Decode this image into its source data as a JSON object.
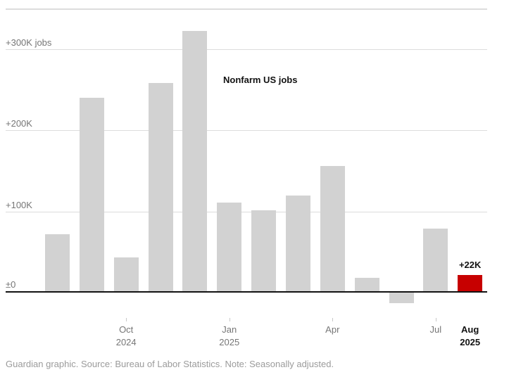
{
  "chart_data": {
    "type": "bar",
    "title": "Nonfarm US jobs",
    "unit": "thousands of jobs (K)",
    "categories": [
      "Aug 2024",
      "Sep 2024",
      "Oct 2024",
      "Nov 2024",
      "Dec 2024",
      "Jan 2025",
      "Feb 2025",
      "Mar 2025",
      "Apr 2025",
      "May 2025",
      "Jun 2025",
      "Jul 2025",
      "Aug 2025"
    ],
    "values": [
      72,
      240,
      44,
      258,
      322,
      111,
      102,
      120,
      156,
      19,
      -13,
      79,
      22
    ],
    "highlight_index": 12,
    "highlight_label": "+22K",
    "ylim": [
      -30,
      350
    ],
    "grid": true,
    "legend_position": "none",
    "y_ticks": [
      {
        "value": 300,
        "label": "+300K jobs"
      },
      {
        "value": 200,
        "label": "+200K"
      },
      {
        "value": 100,
        "label": "+100K"
      },
      {
        "value": 0,
        "label": "±0"
      }
    ],
    "x_ticks": [
      {
        "index": 2,
        "lines": [
          "Oct",
          "2024"
        ],
        "tick": true,
        "emphasis": false
      },
      {
        "index": 5,
        "lines": [
          "Jan",
          "2025"
        ],
        "tick": true,
        "emphasis": false
      },
      {
        "index": 8,
        "lines": [
          "Apr"
        ],
        "tick": true,
        "emphasis": false
      },
      {
        "index": 11,
        "lines": [
          "Jul"
        ],
        "tick": true,
        "emphasis": false
      },
      {
        "index": 12,
        "lines": [
          "Aug",
          "2025"
        ],
        "tick": false,
        "emphasis": true
      }
    ]
  },
  "colors": {
    "bar": "#d2d2d2",
    "highlight_bar": "#c70000",
    "gridline": "#dcdcdc",
    "top_rule": "#dcdcdc",
    "axis": "#121212",
    "tick_mark": "#c8c8c8",
    "muted_label": "#767676",
    "emphasis_text": "#121212",
    "footer_text": "#9b9b9b"
  },
  "footer": {
    "credit": "Guardian graphic. Source: Bureau of Labor Statistics. Note: Seasonally adjusted."
  }
}
